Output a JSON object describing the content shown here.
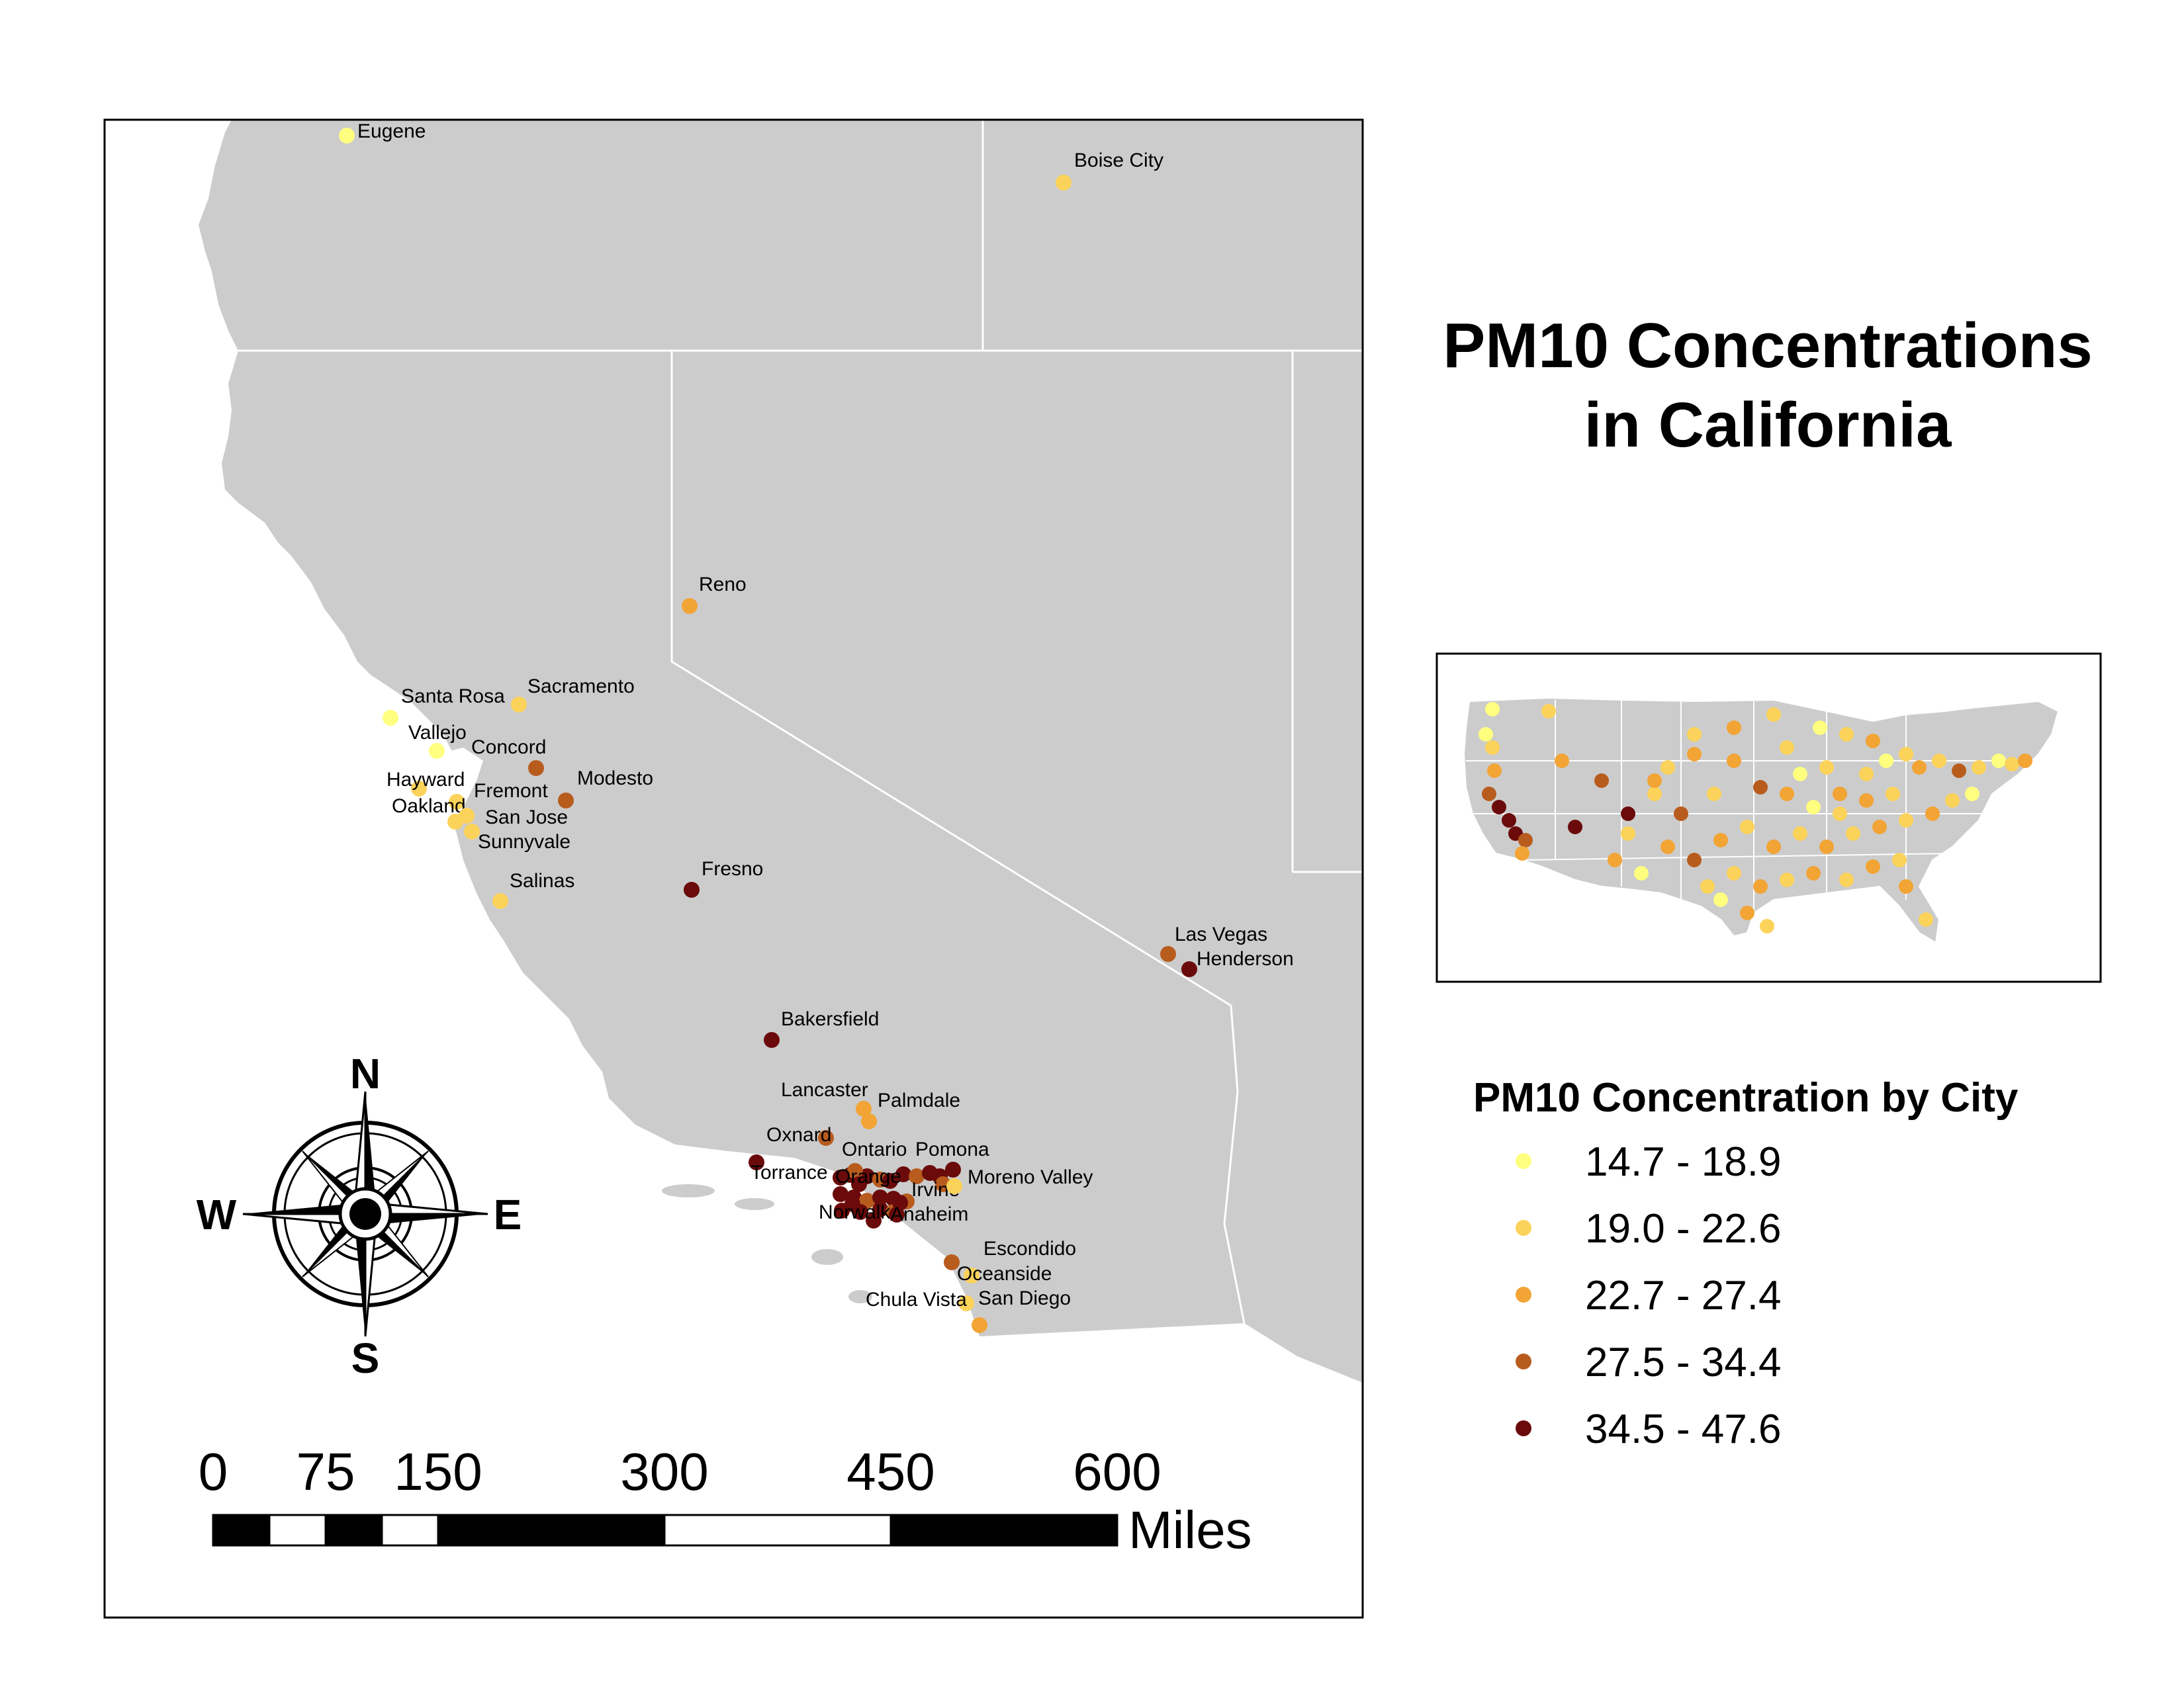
{
  "title": {
    "line1": "PM10 Concentrations",
    "line2": "in California"
  },
  "legend": {
    "title": "PM10 Concentration by City",
    "classes": [
      {
        "label": "14.7 - 18.9",
        "color": "#ffff7f"
      },
      {
        "label": "19.0 - 22.6",
        "color": "#fcd35a"
      },
      {
        "label": "22.7 - 27.4",
        "color": "#f2a435"
      },
      {
        "label": "27.5 - 34.4",
        "color": "#b85c1e"
      },
      {
        "label": "34.5 - 47.6",
        "color": "#6b0a0a"
      }
    ]
  },
  "cities": [
    {
      "name": "Eugene",
      "class": 0
    },
    {
      "name": "Boise City",
      "class": 1
    },
    {
      "name": "Reno",
      "class": 2
    },
    {
      "name": "Sacramento",
      "class": 1
    },
    {
      "name": "Santa Rosa",
      "class": 0
    },
    {
      "name": "Vallejo",
      "class": 0
    },
    {
      "name": "Concord",
      "class": 3
    },
    {
      "name": "Modesto",
      "class": 3
    },
    {
      "name": "Hayward",
      "class": 1
    },
    {
      "name": "Fremont",
      "class": 1
    },
    {
      "name": "Oakland",
      "class": 1
    },
    {
      "name": "San Jose",
      "class": 1
    },
    {
      "name": "Sunnyvale",
      "class": 1
    },
    {
      "name": "Salinas",
      "class": 1
    },
    {
      "name": "Fresno",
      "class": 4
    },
    {
      "name": "Las Vegas",
      "class": 3
    },
    {
      "name": "Henderson",
      "class": 4
    },
    {
      "name": "Bakersfield",
      "class": 4
    },
    {
      "name": "Lancaster",
      "class": 2
    },
    {
      "name": "Palmdale",
      "class": 2
    },
    {
      "name": "Oxnard",
      "class": 3
    },
    {
      "name": "Ontario",
      "class": 3
    },
    {
      "name": "Pomona",
      "class": 4
    },
    {
      "name": "Torrance",
      "class": 4
    },
    {
      "name": "Orange",
      "class": 4
    },
    {
      "name": "Irvine",
      "class": 3
    },
    {
      "name": "Moreno Valley",
      "class": 1
    },
    {
      "name": "Norwalk",
      "class": 4
    },
    {
      "name": "Anaheim",
      "class": 4
    },
    {
      "name": "Escondido",
      "class": 3
    },
    {
      "name": "Oceanside",
      "class": 1
    },
    {
      "name": "Chula Vista",
      "class": 1
    },
    {
      "name": "San Diego",
      "class": 2
    }
  ],
  "compass": {
    "north": "N",
    "south": "S",
    "east": "E",
    "west": "W"
  },
  "scale_bar": {
    "ticks": [
      "0",
      "75",
      "150",
      "300",
      "450",
      "600"
    ],
    "unit": "Miles"
  },
  "inset": {
    "name": "contiguous-us-overview"
  },
  "colors": {
    "land": "#cccccc",
    "water": "#ffffff",
    "border": "#ffffff",
    "frame": "#000000"
  }
}
